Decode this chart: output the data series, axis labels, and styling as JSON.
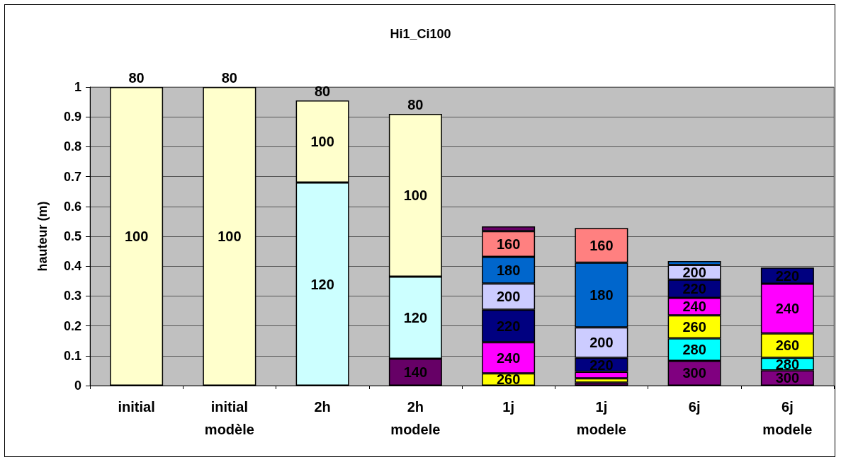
{
  "chart_data": {
    "type": "bar",
    "title": "Hi1_Ci100",
    "ylabel": "hauteur (m)",
    "stacked": true,
    "grid": "y",
    "categories": [
      "initial",
      "initial\nmodèle",
      "2h",
      "2h\nmodele",
      "1j",
      "1j\nmodele",
      "6j",
      "6j\nmodele"
    ],
    "ylim": [
      0,
      1
    ],
    "yticks": [
      0,
      0.1,
      0.2,
      0.3,
      0.4,
      0.5,
      0.6,
      0.7,
      0.8,
      0.9,
      1
    ],
    "series": [
      {
        "name": "300",
        "color": "#800080",
        "values": [
          0,
          0,
          0,
          0,
          0,
          0.01,
          0.083,
          0.051
        ]
      },
      {
        "name": "280",
        "color": "#00ffff",
        "values": [
          0,
          0,
          0,
          0,
          0,
          0,
          0.075,
          0.042
        ]
      },
      {
        "name": "260",
        "color": "#ffff00",
        "values": [
          0,
          0,
          0,
          0,
          0.041,
          0.014,
          0.077,
          0.082
        ]
      },
      {
        "name": "240",
        "color": "#ff00ff",
        "values": [
          0,
          0,
          0,
          0,
          0.104,
          0.022,
          0.059,
          0.166
        ]
      },
      {
        "name": "220",
        "color": "#000080",
        "values": [
          0,
          0,
          0,
          0,
          0.109,
          0.047,
          0.061,
          0.054
        ]
      },
      {
        "name": "200",
        "color": "#ccccff",
        "values": [
          0,
          0,
          0,
          0,
          0.088,
          0.102,
          0.049,
          0
        ]
      },
      {
        "name": "180",
        "color": "#0066cc",
        "values": [
          0,
          0,
          0,
          0,
          0.089,
          0.217,
          0.013,
          0
        ]
      },
      {
        "name": "160",
        "color": "#ff8080",
        "values": [
          0,
          0,
          0,
          0,
          0.086,
          0.116,
          0,
          0
        ]
      },
      {
        "name": "140",
        "color": "#660066",
        "values": [
          0,
          0,
          0,
          0.09,
          0.016,
          0,
          0,
          0
        ]
      },
      {
        "name": "120",
        "color": "#ccffff",
        "values": [
          0,
          0,
          0.68,
          0.275,
          0,
          0,
          0,
          0
        ]
      },
      {
        "name": "100",
        "color": "#ffffcc",
        "values": [
          1,
          1,
          0.275,
          0.545,
          0,
          0,
          0,
          0
        ]
      }
    ],
    "annotations": [
      {
        "text": "80",
        "x": "initial",
        "y": 1
      },
      {
        "text": "80",
        "x": "initial\nmodèle",
        "y": 1
      },
      {
        "text": "80",
        "x": "2h",
        "y": 0.955
      },
      {
        "text": "80",
        "x": "2h\nmodele",
        "y": 0.91
      }
    ]
  }
}
